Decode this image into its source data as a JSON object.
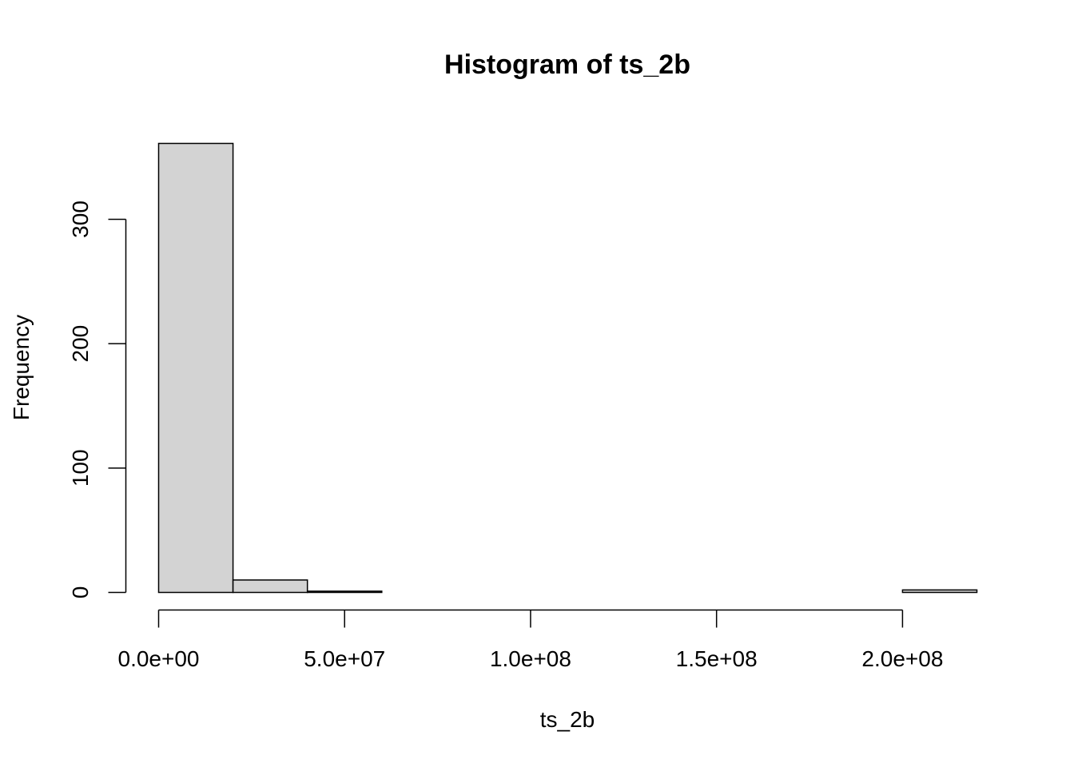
{
  "chart_data": {
    "type": "bar",
    "title": "Histogram of ts_2b",
    "xlabel": "ts_2b",
    "ylabel": "Frequency",
    "bins": [
      {
        "start": 0,
        "end": 20000000,
        "count": 361
      },
      {
        "start": 20000000,
        "end": 40000000,
        "count": 10
      },
      {
        "start": 40000000,
        "end": 60000000,
        "count": 1
      },
      {
        "start": 60000000,
        "end": 80000000,
        "count": 0
      },
      {
        "start": 80000000,
        "end": 100000000,
        "count": 0
      },
      {
        "start": 100000000,
        "end": 120000000,
        "count": 0
      },
      {
        "start": 120000000,
        "end": 140000000,
        "count": 0
      },
      {
        "start": 140000000,
        "end": 160000000,
        "count": 0
      },
      {
        "start": 160000000,
        "end": 180000000,
        "count": 0
      },
      {
        "start": 180000000,
        "end": 200000000,
        "count": 0
      },
      {
        "start": 200000000,
        "end": 220000000,
        "count": 2
      }
    ],
    "xticks": [
      {
        "value": 0,
        "label": "0.0e+00"
      },
      {
        "value": 50000000,
        "label": "5.0e+07"
      },
      {
        "value": 100000000,
        "label": "1.0e+08"
      },
      {
        "value": 150000000,
        "label": "1.5e+08"
      },
      {
        "value": 200000000,
        "label": "2.0e+08"
      }
    ],
    "yticks": [
      {
        "value": 0,
        "label": "0"
      },
      {
        "value": 100,
        "label": "100"
      },
      {
        "value": 200,
        "label": "200"
      },
      {
        "value": 300,
        "label": "300"
      }
    ],
    "xlim": [
      0,
      220000000
    ],
    "ylim": [
      0,
      361
    ],
    "grid": false,
    "bar_fill": "#d3d3d3",
    "bar_stroke": "#000000"
  }
}
